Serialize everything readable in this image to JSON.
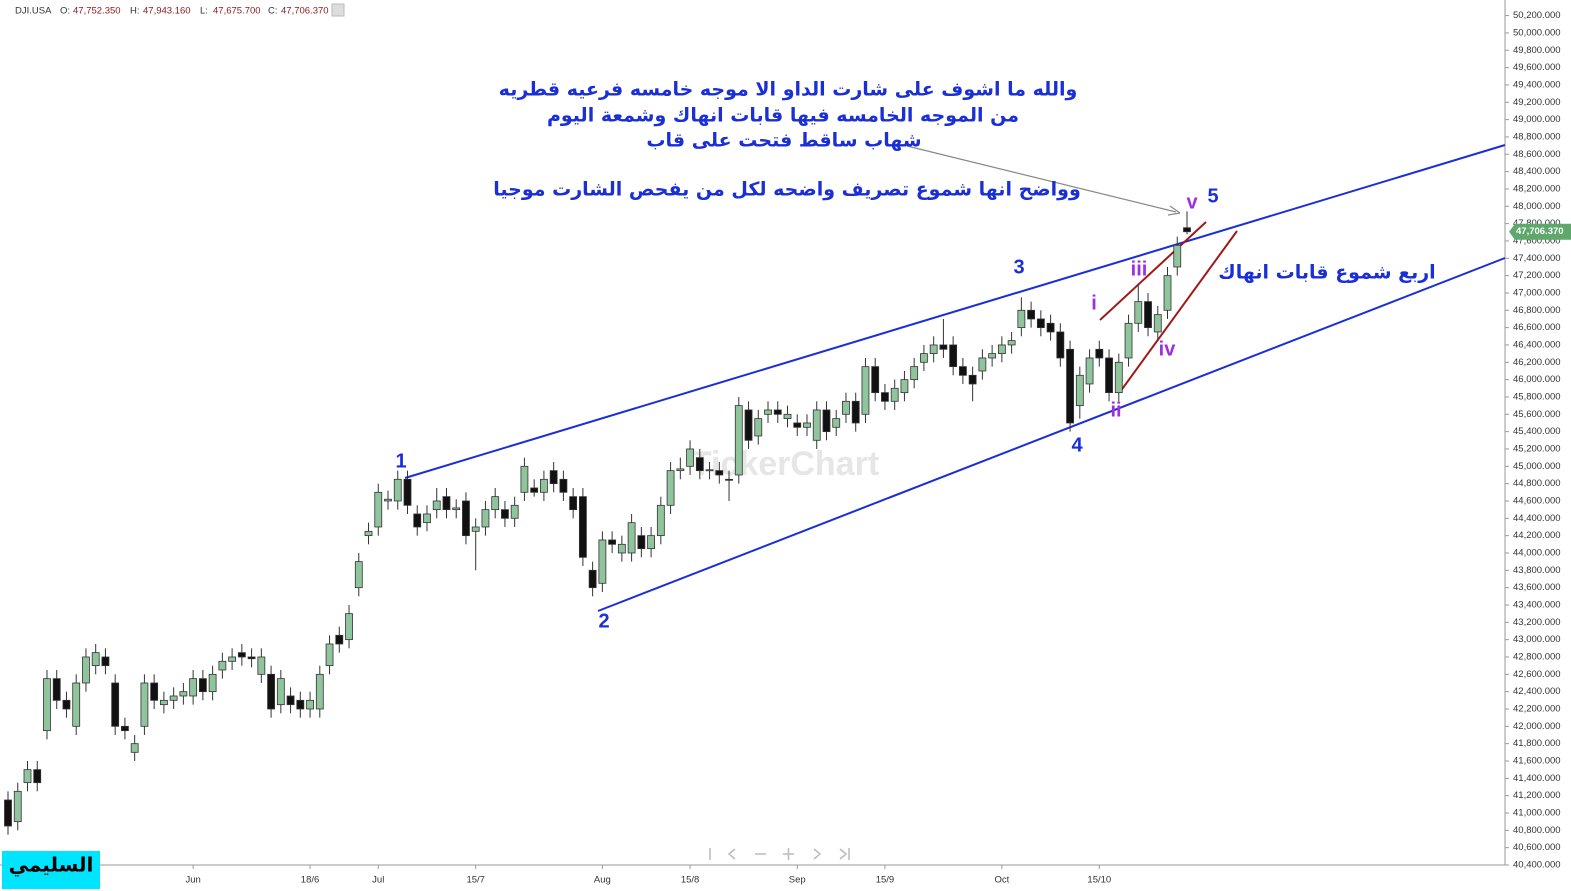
{
  "chart_data": {
    "type": "candlestick",
    "header": {
      "symbol": "DJI.USA",
      "fields": [
        {
          "key": "O:",
          "value": "47,752.350"
        },
        {
          "key": "H:",
          "value": "47,943.160"
        },
        {
          "key": "L:",
          "value": "47,675.700"
        },
        {
          "key": "C:",
          "value": "47,706.370"
        }
      ]
    },
    "categories": [
      null,
      null,
      null,
      null,
      null,
      null,
      null,
      null,
      null,
      null,
      null,
      null,
      null,
      null,
      null,
      null,
      null,
      null,
      null,
      "Jun",
      null,
      null,
      null,
      null,
      null,
      null,
      null,
      null,
      null,
      null,
      null,
      "18/6",
      null,
      null,
      null,
      null,
      null,
      null,
      "Jul",
      null,
      null,
      null,
      null,
      null,
      null,
      null,
      null,
      null,
      "15/7",
      null,
      null,
      null,
      null,
      null,
      null,
      null,
      null,
      null,
      null,
      null,
      null,
      "Aug",
      null,
      null,
      null,
      null,
      null,
      null,
      null,
      null,
      "15/8",
      null,
      null,
      null,
      null,
      null,
      null,
      null,
      null,
      null,
      null,
      "Sep",
      null,
      null,
      null,
      null,
      null,
      null,
      null,
      null,
      "15/9",
      null,
      null,
      null,
      null,
      null,
      null,
      null,
      null,
      null,
      null,
      null,
      "Oct",
      null,
      null,
      null,
      null,
      null,
      null,
      null,
      null,
      null,
      "15/10",
      null,
      null,
      null,
      null,
      null,
      null,
      null,
      null,
      null
    ],
    "open": [
      41150,
      40900,
      41350,
      41500,
      41950,
      42550,
      42300,
      42000,
      42500,
      42700,
      42800,
      42500,
      42000,
      41700,
      42000,
      42500,
      42250,
      42300,
      42350,
      42350,
      42550,
      42400,
      42650,
      42750,
      42850,
      42800,
      42600,
      42600,
      42250,
      42350,
      42300,
      42200,
      42200,
      42700,
      43050,
      43000,
      43600,
      44200,
      44300,
      44600,
      44600,
      44850,
      44450,
      44350,
      44500,
      44650,
      44500,
      44600,
      44250,
      44300,
      44500,
      44500,
      44400,
      44700,
      44750,
      44700,
      44950,
      44850,
      44650,
      44650,
      43800,
      43650,
      44150,
      44000,
      44000,
      44200,
      44050,
      44200,
      44550,
      44950,
      45000,
      45100,
      44950,
      44950,
      44850,
      44900,
      45650,
      45350,
      45600,
      45650,
      45550,
      45500,
      45450,
      45300,
      45650,
      45450,
      45600,
      45750,
      45600,
      46150,
      45850,
      45750,
      45850,
      46000,
      46200,
      46300,
      46400,
      46400,
      46150,
      46050,
      46100,
      46250,
      46300,
      46400,
      46600,
      46800,
      46700,
      46650,
      46550,
      46350,
      45700,
      45950,
      46350,
      46250,
      45850,
      46250,
      46650,
      46900,
      46550,
      46800,
      47300,
      47752.35
    ],
    "high": [
      41250,
      41350,
      41600,
      41600,
      42650,
      42650,
      42400,
      42600,
      42900,
      42950,
      42900,
      42600,
      42100,
      41900,
      42600,
      42600,
      42400,
      42450,
      42500,
      42650,
      42650,
      42700,
      42850,
      42900,
      42950,
      42900,
      42900,
      42700,
      42650,
      42450,
      42400,
      42400,
      42700,
      43050,
      43150,
      43400,
      44000,
      44350,
      44800,
      44720,
      44950,
      44950,
      44550,
      44550,
      44750,
      44750,
      44620,
      44700,
      44400,
      44600,
      44750,
      44600,
      44650,
      45100,
      44850,
      44950,
      45050,
      44950,
      44750,
      44750,
      43900,
      44250,
      44250,
      44200,
      44450,
      44300,
      44300,
      44650,
      45050,
      45100,
      45300,
      45200,
      45050,
      45050,
      44950,
      45800,
      45750,
      45650,
      45750,
      45750,
      45700,
      45600,
      45600,
      45750,
      45750,
      45650,
      45850,
      45850,
      46250,
      46250,
      45950,
      46000,
      46100,
      46250,
      46400,
      46500,
      46700,
      46500,
      46250,
      46150,
      46350,
      46400,
      46500,
      46550,
      46950,
      46900,
      46800,
      46750,
      46650,
      46450,
      46150,
      46350,
      46450,
      46350,
      46300,
      46750,
      47100,
      47000,
      46850,
      47300,
      47650,
      47943.16
    ],
    "low": [
      40750,
      40800,
      41250,
      41250,
      41850,
      42200,
      42100,
      41900,
      42400,
      42600,
      42600,
      41900,
      41850,
      41600,
      41900,
      42200,
      42150,
      42200,
      42250,
      42250,
      42300,
      42300,
      42550,
      42650,
      42700,
      42680,
      42500,
      42100,
      42150,
      42150,
      42100,
      42100,
      42100,
      42600,
      42850,
      42900,
      43500,
      44100,
      44200,
      44500,
      44500,
      44450,
      44200,
      44250,
      44400,
      44400,
      44400,
      44100,
      43800,
      44200,
      44400,
      44300,
      44300,
      44600,
      44650,
      44600,
      44700,
      44600,
      44400,
      43850,
      43500,
      43550,
      44000,
      43900,
      43900,
      43950,
      43950,
      44100,
      44450,
      44850,
      44900,
      44850,
      44850,
      44800,
      44600,
      44800,
      45200,
      45250,
      45500,
      45500,
      45450,
      45350,
      45350,
      45200,
      45300,
      45350,
      45500,
      45400,
      45500,
      45750,
      45650,
      45650,
      45750,
      45900,
      46100,
      46200,
      46250,
      46050,
      45950,
      45750,
      46000,
      46150,
      46200,
      46300,
      46500,
      46600,
      46500,
      46450,
      46150,
      45400,
      45550,
      45850,
      46150,
      45750,
      45750,
      46150,
      46550,
      46500,
      46450,
      46700,
      47200,
      47675.7
    ],
    "close": [
      40850,
      41250,
      41500,
      41350,
      42550,
      42300,
      42200,
      42500,
      42800,
      42850,
      42700,
      42000,
      41950,
      41800,
      42500,
      42300,
      42300,
      42350,
      42400,
      42550,
      42400,
      42600,
      42750,
      42800,
      42800,
      42780,
      42800,
      42200,
      42550,
      42250,
      42200,
      42300,
      42600,
      42950,
      42950,
      43300,
      43900,
      44250,
      44700,
      44620,
      44850,
      44550,
      44300,
      44450,
      44600,
      44500,
      44520,
      44200,
      44300,
      44500,
      44650,
      44400,
      44550,
      45000,
      44700,
      44850,
      44800,
      44700,
      44500,
      43950,
      43600,
      44150,
      44100,
      44100,
      44350,
      44050,
      44200,
      44550,
      44950,
      44970,
      45200,
      44950,
      44960,
      44900,
      44840,
      45700,
      45300,
      45550,
      45650,
      45600,
      45600,
      45450,
      45500,
      45650,
      45400,
      45550,
      45750,
      45500,
      46150,
      45850,
      45750,
      45900,
      46000,
      46150,
      46300,
      46400,
      46350,
      46150,
      46050,
      45950,
      46250,
      46300,
      46400,
      46450,
      46800,
      46700,
      46600,
      46550,
      46250,
      45500,
      46050,
      46250,
      46250,
      45850,
      46200,
      46650,
      46900,
      46600,
      46750,
      47200,
      47550,
      47706.37
    ],
    "up_color": "#8fc49c",
    "down_color": "#111111",
    "last_label": "47,706.370",
    "ylim": [
      40400,
      50380
    ],
    "yticks": [
      {
        "value": 40400,
        "label": "40,400.000"
      },
      {
        "value": 40600,
        "label": "40,600.000"
      },
      {
        "value": 40800,
        "label": "40,800.000"
      },
      {
        "value": 41000,
        "label": "41,000.000"
      },
      {
        "value": 41200,
        "label": "41,200.000"
      },
      {
        "value": 41400,
        "label": "41,400.000"
      },
      {
        "value": 41600,
        "label": "41,600.000"
      },
      {
        "value": 41800,
        "label": "41,800.000"
      },
      {
        "value": 42000,
        "label": "42,000.000"
      },
      {
        "value": 42200,
        "label": "42,200.000"
      },
      {
        "value": 42400,
        "label": "42,400.000"
      },
      {
        "value": 42600,
        "label": "42,600.000"
      },
      {
        "value": 42800,
        "label": "42,800.000"
      },
      {
        "value": 43000,
        "label": "43,000.000"
      },
      {
        "value": 43200,
        "label": "43,200.000"
      },
      {
        "value": 43400,
        "label": "43,400.000"
      },
      {
        "value": 43600,
        "label": "43,600.000"
      },
      {
        "value": 43800,
        "label": "43,800.000"
      },
      {
        "value": 44000,
        "label": "44,000.000"
      },
      {
        "value": 44200,
        "label": "44,200.000"
      },
      {
        "value": 44400,
        "label": "44,400.000"
      },
      {
        "value": 44600,
        "label": "44,600.000"
      },
      {
        "value": 44800,
        "label": "44,800.000"
      },
      {
        "value": 45000,
        "label": "45,000.000"
      },
      {
        "value": 45200,
        "label": "45,200.000"
      },
      {
        "value": 45400,
        "label": "45,400.000"
      },
      {
        "value": 45600,
        "label": "45,600.000"
      },
      {
        "value": 45800,
        "label": "45,800.000"
      },
      {
        "value": 46000,
        "label": "46,000.000"
      },
      {
        "value": 46200,
        "label": "46,200.000"
      },
      {
        "value": 46400,
        "label": "46,400.000"
      },
      {
        "value": 46600,
        "label": "46,600.000"
      },
      {
        "value": 46800,
        "label": "46,800.000"
      },
      {
        "value": 47000,
        "label": "47,000.000"
      },
      {
        "value": 47200,
        "label": "47,200.000"
      },
      {
        "value": 47400,
        "label": "47,400.000"
      },
      {
        "value": 47600,
        "label": "47,600.000"
      },
      {
        "value": 47800,
        "label": "47,800.000"
      },
      {
        "value": 48000,
        "label": "48,000.000"
      },
      {
        "value": 48200,
        "label": "48,200.000"
      },
      {
        "value": 48400,
        "label": "48,400.000"
      },
      {
        "value": 48600,
        "label": "48,600.000"
      },
      {
        "value": 48800,
        "label": "48,800.000"
      },
      {
        "value": 49000,
        "label": "49,000.000"
      },
      {
        "value": 49200,
        "label": "49,200.000"
      },
      {
        "value": 49400,
        "label": "49,400.000"
      },
      {
        "value": 49600,
        "label": "49,600.000"
      },
      {
        "value": 49800,
        "label": "49,800.000"
      },
      {
        "value": 50000,
        "label": "50,000.000"
      },
      {
        "value": 50200,
        "label": "50,200.000"
      }
    ],
    "wave_labels": [
      "1",
      "2",
      "3",
      "4",
      "5"
    ],
    "sub_wave_labels": [
      "i",
      "ii",
      "iii",
      "iv",
      "v"
    ],
    "annotations": [
      "والله ما اشوف على شارت الداو الا موجه خامسه فرعيه قطريه",
      "من الموجه الخامسه فيها قابات انهاك وشمعة اليوم",
      "شهاب ساقط فتحت على قاب",
      "وواضح انها شموع تصريف واضحه لكل من يفحص الشارت موجيا",
      "اربع شموع قابات انهاك"
    ],
    "watermark": "TickerChart",
    "signature": "السليمي"
  }
}
